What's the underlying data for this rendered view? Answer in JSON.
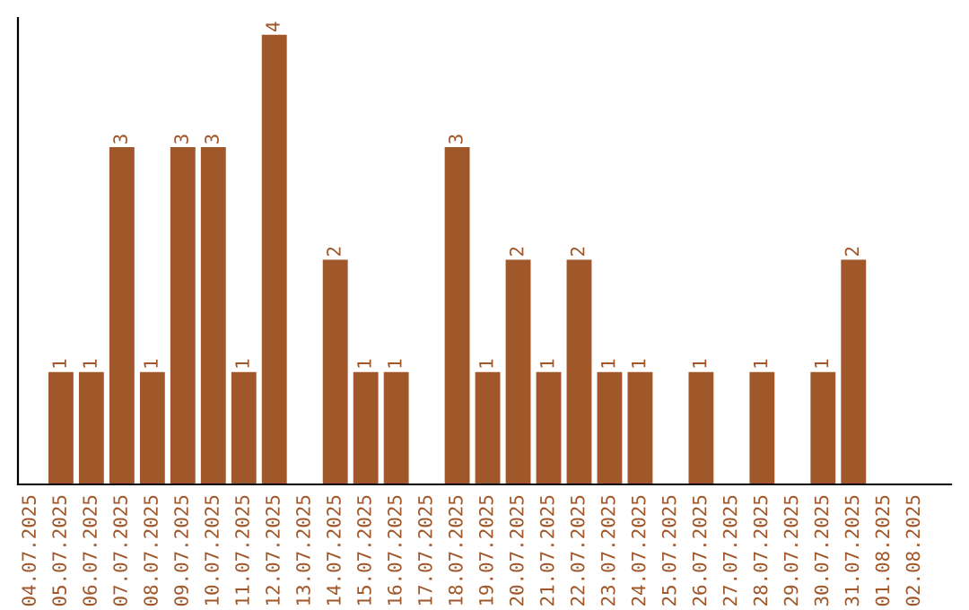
{
  "chart_data": {
    "type": "bar",
    "categories": [
      "04.07.2025",
      "05.07.2025",
      "06.07.2025",
      "07.07.2025",
      "08.07.2025",
      "09.07.2025",
      "10.07.2025",
      "11.07.2025",
      "12.07.2025",
      "13.07.2025",
      "14.07.2025",
      "15.07.2025",
      "16.07.2025",
      "17.07.2025",
      "18.07.2025",
      "19.07.2025",
      "20.07.2025",
      "21.07.2025",
      "22.07.2025",
      "23.07.2025",
      "24.07.2025",
      "25.07.2025",
      "26.07.2025",
      "27.07.2025",
      "28.07.2025",
      "29.07.2025",
      "30.07.2025",
      "31.07.2025",
      "01.08.2025",
      "02.08.2025"
    ],
    "values": [
      null,
      1,
      1,
      3,
      1,
      3,
      3,
      1,
      4,
      null,
      2,
      1,
      1,
      null,
      3,
      1,
      2,
      1,
      2,
      1,
      1,
      null,
      1,
      null,
      1,
      null,
      1,
      2,
      null,
      null
    ],
    "color": "#a0572a",
    "ylim": [
      0,
      4.15
    ],
    "tick_labels": "x",
    "data_labels": true,
    "grid": false,
    "legend": false
  }
}
